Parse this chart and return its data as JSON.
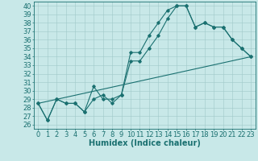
{
  "title": "",
  "xlabel": "Humidex (Indice chaleur)",
  "ylabel": "",
  "bg_color": "#c8e8e8",
  "line_color": "#1a7070",
  "xlim": [
    -0.5,
    23.5
  ],
  "ylim": [
    25.5,
    40.5
  ],
  "yticks": [
    26,
    27,
    28,
    29,
    30,
    31,
    32,
    33,
    34,
    35,
    36,
    37,
    38,
    39,
    40
  ],
  "xticks": [
    0,
    1,
    2,
    3,
    4,
    5,
    6,
    7,
    8,
    9,
    10,
    11,
    12,
    13,
    14,
    15,
    16,
    17,
    18,
    19,
    20,
    21,
    22,
    23
  ],
  "line1_x": [
    0,
    1,
    2,
    3,
    4,
    5,
    6,
    7,
    8,
    9,
    10,
    11,
    12,
    13,
    14,
    15,
    16,
    17,
    18,
    19,
    20,
    21,
    22,
    23
  ],
  "line1_y": [
    28.5,
    26.5,
    29.0,
    28.5,
    28.5,
    27.5,
    30.5,
    29.0,
    29.0,
    29.5,
    34.5,
    34.5,
    36.5,
    38.0,
    39.5,
    40.0,
    40.0,
    37.5,
    38.0,
    37.5,
    37.5,
    36.0,
    35.0,
    34.0
  ],
  "line2_x": [
    0,
    1,
    2,
    3,
    4,
    5,
    6,
    7,
    8,
    9,
    10,
    11,
    12,
    13,
    14,
    15,
    16,
    17,
    18,
    19,
    20,
    21,
    22,
    23
  ],
  "line2_y": [
    28.5,
    26.5,
    29.0,
    28.5,
    28.5,
    27.5,
    29.0,
    29.5,
    28.5,
    29.5,
    33.5,
    33.5,
    35.0,
    36.5,
    38.5,
    40.0,
    40.0,
    37.5,
    38.0,
    37.5,
    37.5,
    36.0,
    35.0,
    34.0
  ],
  "line3_x": [
    0,
    23
  ],
  "line3_y": [
    28.5,
    34.0
  ],
  "grid_color": "#a0c8c8",
  "marker": "D",
  "marker_size": 1.8,
  "font_size": 6,
  "xlabel_fontsize": 7
}
